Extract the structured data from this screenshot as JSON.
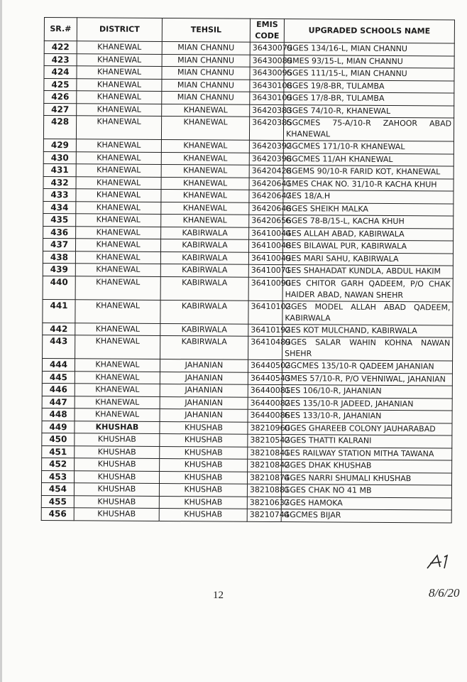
{
  "headers": {
    "sr": "SR.#",
    "district": "DISTRICT",
    "tehsil": "TEHSIL",
    "emis": "EMIS CODE",
    "name": "UPGRADED SCHOOLS NAME"
  },
  "rows": [
    {
      "sr": "422",
      "district": "KHANEWAL",
      "tehsil": "MIAN CHANNU",
      "emis": "36430079",
      "name": "GGES 134/16-L, MIAN CHANNU"
    },
    {
      "sr": "423",
      "district": "KHANEWAL",
      "tehsil": "MIAN CHANNU",
      "emis": "36430089",
      "name": "GMES 93/15-L, MIAN CHANNU"
    },
    {
      "sr": "424",
      "district": "KHANEWAL",
      "tehsil": "MIAN CHANNU",
      "emis": "36430095",
      "name": "GGES 111/15-L, MIAN CHANNU"
    },
    {
      "sr": "425",
      "district": "KHANEWAL",
      "tehsil": "MIAN CHANNU",
      "emis": "36430108",
      "name": "GGES 19/8-BR, TULAMBA"
    },
    {
      "sr": "426",
      "district": "KHANEWAL",
      "tehsil": "MIAN CHANNU",
      "emis": "36430109",
      "name": "GGES 17/8-BR, TULAMBA"
    },
    {
      "sr": "427",
      "district": "KHANEWAL",
      "tehsil": "KHANEWAL",
      "emis": "36420383",
      "name": "GGES 74/10-R, KHANEWAL"
    },
    {
      "sr": "428",
      "district": "KHANEWAL",
      "tehsil": "KHANEWAL",
      "emis": "36420385",
      "name": "GGCMES 75-A/10-R ZAHOOR ABAD KHANEWAL"
    },
    {
      "sr": "429",
      "district": "KHANEWAL",
      "tehsil": "KHANEWAL",
      "emis": "36420392",
      "name": "GGCMES 171/10-R KHANEWAL"
    },
    {
      "sr": "430",
      "district": "KHANEWAL",
      "tehsil": "KHANEWAL",
      "emis": "36420398",
      "name": "GGCMES 11/AH KHANEWAL"
    },
    {
      "sr": "431",
      "district": "KHANEWAL",
      "tehsil": "KHANEWAL",
      "emis": "36420428",
      "name": "GGEMS 90/10-R FARID KOT, KHANEWAL"
    },
    {
      "sr": "432",
      "district": "KHANEWAL",
      "tehsil": "KHANEWAL",
      "emis": "36420641",
      "name": "GMES CHAK NO. 31/10-R KACHA KHUH"
    },
    {
      "sr": "433",
      "district": "KHANEWAL",
      "tehsil": "KHANEWAL",
      "emis": "36420647",
      "name": "GES 18/A.H"
    },
    {
      "sr": "434",
      "district": "KHANEWAL",
      "tehsil": "KHANEWAL",
      "emis": "36420648",
      "name": "GGES SHEIKH MALKA"
    },
    {
      "sr": "435",
      "district": "KHANEWAL",
      "tehsil": "KHANEWAL",
      "emis": "36420656",
      "name": "GGES 78-B/15-L, KACHA KHUH"
    },
    {
      "sr": "436",
      "district": "KHANEWAL",
      "tehsil": "KABIRWALA",
      "emis": "36410044",
      "name": "GES ALLAH ABAD, KABIRWALA"
    },
    {
      "sr": "437",
      "district": "KHANEWAL",
      "tehsil": "KABIRWALA",
      "emis": "36410048",
      "name": "GES BILAWAL PUR, KABIRWALA"
    },
    {
      "sr": "438",
      "district": "KHANEWAL",
      "tehsil": "KABIRWALA",
      "emis": "36410049",
      "name": "GES MARI SAHU, KABIRWALA"
    },
    {
      "sr": "439",
      "district": "KHANEWAL",
      "tehsil": "KABIRWALA",
      "emis": "36410071",
      "name": "GES SHAHADAT KUNDLA, ABDUL HAKIM"
    },
    {
      "sr": "440",
      "district": "KHANEWAL",
      "tehsil": "KABIRWALA",
      "emis": "36410090",
      "name": "GES CHITOR GARH QADEEM, P/O CHAK HAIDER ABAD, NAWAN SHEHR"
    },
    {
      "sr": "441",
      "district": "KHANEWAL",
      "tehsil": "KABIRWALA",
      "emis": "36410102",
      "name": "GGES MODEL ALLAH ABAD QADEEM, KABIRWALA"
    },
    {
      "sr": "442",
      "district": "KHANEWAL",
      "tehsil": "KABIRWALA",
      "emis": "36410192",
      "name": "GES KOT MULCHAND, KABIRWALA"
    },
    {
      "sr": "443",
      "district": "KHANEWAL",
      "tehsil": "KABIRWALA",
      "emis": "36410489",
      "name": "GGES SALAR WAHIN KOHNA NAWAN SHEHR"
    },
    {
      "sr": "444",
      "district": "KHANEWAL",
      "tehsil": "JAHANIAN",
      "emis": "36440502",
      "name": "GGCMES 135/10-R QADEEM JAHANIAN"
    },
    {
      "sr": "445",
      "district": "KHANEWAL",
      "tehsil": "JAHANIAN",
      "emis": "36440543",
      "name": "GMES 57/10-R, P/O VEHNIWAL, JAHANIAN"
    },
    {
      "sr": "446",
      "district": "KHANEWAL",
      "tehsil": "JAHANIAN",
      "emis": "36440081",
      "name": "GES 106/10-R, JAHANIAN"
    },
    {
      "sr": "447",
      "district": "KHANEWAL",
      "tehsil": "JAHANIAN",
      "emis": "36440082",
      "name": "GES 135/10-R JADEED, JAHANIAN"
    },
    {
      "sr": "448",
      "district": "KHANEWAL",
      "tehsil": "JAHANIAN",
      "emis": "36440086",
      "name": "GES 133/10-R, JAHANIAN"
    },
    {
      "sr": "449",
      "district": "KHUSHAB",
      "tehsil": "KHUSHAB",
      "emis": "38210960",
      "name": "GGES GHAREEB COLONY JAUHARABAD",
      "bold_district": true
    },
    {
      "sr": "450",
      "district": "KHUSHAB",
      "tehsil": "KHUSHAB",
      "emis": "38210542",
      "name": "GGES THATTI KALRANI"
    },
    {
      "sr": "451",
      "district": "KHUSHAB",
      "tehsil": "KHUSHAB",
      "emis": "38210841",
      "name": "GES RAILWAY STATION MITHA TAWANA"
    },
    {
      "sr": "452",
      "district": "KHUSHAB",
      "tehsil": "KHUSHAB",
      "emis": "38210842",
      "name": "GGES DHAK KHUSHAB"
    },
    {
      "sr": "453",
      "district": "KHUSHAB",
      "tehsil": "KHUSHAB",
      "emis": "38210874",
      "name": "GGES NARRI SHUMALI KHUSHAB"
    },
    {
      "sr": "454",
      "district": "KHUSHAB",
      "tehsil": "KHUSHAB",
      "emis": "38210881",
      "name": "GGES CHAK NO 41 MB"
    },
    {
      "sr": "455",
      "district": "KHUSHAB",
      "tehsil": "KHUSHAB",
      "emis": "38210637",
      "name": "GGES HAMOKA"
    },
    {
      "sr": "456",
      "district": "KHUSHAB",
      "tehsil": "KHUSHAB",
      "emis": "38210744",
      "name": "GGCMES BIJAR"
    }
  ],
  "page_number": "12",
  "signature": {
    "initials": "A",
    "date": "8/6/20"
  }
}
